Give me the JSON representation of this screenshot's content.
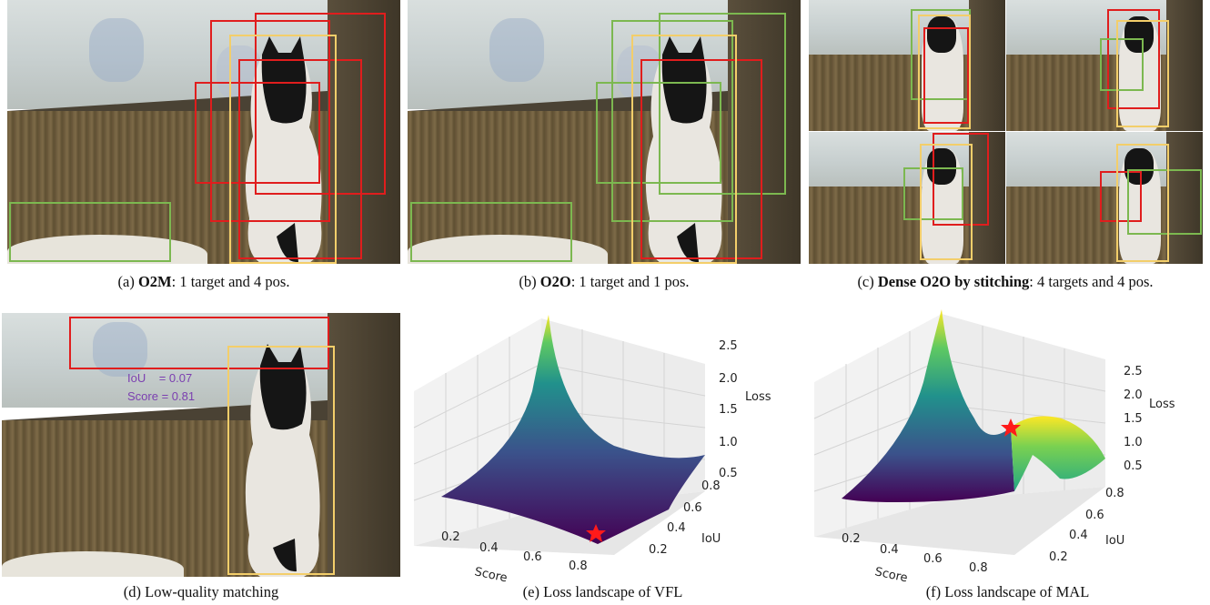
{
  "panels": {
    "a": {
      "caption_prefix": "(a)",
      "caption_bold": "O2M",
      "caption_rest": ": 1 target and 4 pos."
    },
    "b": {
      "caption_prefix": "(b)",
      "caption_bold": "O2O",
      "caption_rest": ": 1 target and 1 pos."
    },
    "c": {
      "caption_prefix": "(c)",
      "caption_bold": "Dense O2O by stitching",
      "caption_rest": ": 4 targets and 4 pos."
    },
    "d": {
      "caption": "(d) Low-quality matching",
      "iou_label": "IoU",
      "iou_value": "= 0.07",
      "score_label": "Score",
      "score_value": "= 0.81"
    },
    "e": {
      "caption": "(e) Loss landscape of VFL"
    },
    "f": {
      "caption": "(f) Loss landscape of MAL"
    }
  },
  "chart_data": [
    {
      "type": "surface",
      "id": "vfl",
      "xlabel": "Score",
      "ylabel": "IoU",
      "zlabel": "Loss",
      "x_ticks": [
        "0.2",
        "0.4",
        "0.6",
        "0.8"
      ],
      "y_ticks": [
        "0.2",
        "0.4",
        "0.6",
        "0.8"
      ],
      "z_ticks": [
        "0.5",
        "1.0",
        "1.5",
        "2.0",
        "2.5"
      ],
      "colormap": "viridis",
      "marker_color": "#ff1a1a"
    },
    {
      "type": "surface",
      "id": "mal",
      "xlabel": "Score",
      "ylabel": "IoU",
      "zlabel": "Loss",
      "x_ticks": [
        "0.2",
        "0.4",
        "0.6",
        "0.8"
      ],
      "y_ticks": [
        "0.2",
        "0.4",
        "0.6",
        "0.8"
      ],
      "z_ticks": [
        "0.5",
        "1.0",
        "1.5",
        "2.0",
        "2.5"
      ],
      "colormap": "viridis",
      "marker_color": "#ff1a1a"
    }
  ]
}
